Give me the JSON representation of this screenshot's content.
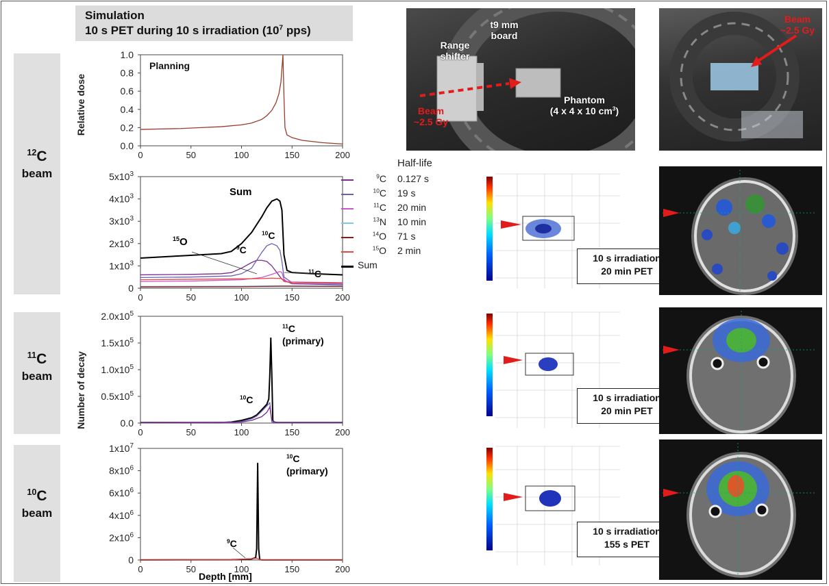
{
  "header": {
    "line1": "Simulation",
    "line2_pre": "10 s PET during 10 s irradiation (10",
    "line2_sup": "7",
    "line2_post": " pps)"
  },
  "rows": [
    {
      "mass": "12",
      "el": "C",
      "word": "beam"
    },
    {
      "mass": "11",
      "el": "C",
      "word": "beam"
    },
    {
      "mass": "10",
      "el": "C",
      "word": "beam"
    }
  ],
  "axis_labels": {
    "relative_dose": "Relative dose",
    "number_of_decay": "Number of decay",
    "depth": "Depth [mm]"
  },
  "legend": {
    "title": "Half-life",
    "items": [
      {
        "mass": "9",
        "el": "C",
        "half_life": "0.127 s",
        "color": "#7b2a8e"
      },
      {
        "mass": "10",
        "el": "C",
        "half_life": "19 s",
        "color": "#6b5fb5"
      },
      {
        "mass": "11",
        "el": "C",
        "half_life": "20 min",
        "color": "#cc55cc"
      },
      {
        "mass": "13",
        "el": "N",
        "half_life": "10 min",
        "color": "#7fc8e8"
      },
      {
        "mass": "14",
        "el": "O",
        "half_life": "71 s",
        "color": "#8b1a1a"
      },
      {
        "mass": "15",
        "el": "O",
        "half_life": "2 min",
        "color": "#ee4444"
      },
      {
        "mass": "",
        "el": "Sum",
        "half_life": "",
        "color": "#000000"
      }
    ]
  },
  "photos": {
    "p1": {
      "range_shifter": "Range shifter",
      "board": "t9 mm board",
      "phantom": "Phantom",
      "phantom_dim_pre": "(4 x 4 x 10 cm",
      "phantom_dim_sup": "3",
      "phantom_dim_post": ")",
      "beam": "Beam",
      "dose": "~2.5 Gy"
    },
    "p2": {
      "beam": "Beam",
      "dose": "~2.5 Gy"
    }
  },
  "pet_boxes": [
    {
      "line1": "10 s irradiation",
      "line2": "20 min PET"
    },
    {
      "line1": "10 s irradiation",
      "line2": "20 min PET"
    },
    {
      "line1": "10 s irradiation",
      "line2": "155 s PET"
    }
  ],
  "chart_data": [
    {
      "type": "line",
      "panel": "planning",
      "title": "Planning",
      "ylabel": "Relative dose",
      "xlim": [
        0,
        200
      ],
      "ylim": [
        0,
        1.0
      ],
      "xticks": [
        "0",
        "50",
        "100",
        "150",
        "200"
      ],
      "yticks": [
        "0.0",
        "0.2",
        "0.4",
        "0.6",
        "0.8",
        "1.0"
      ],
      "series": [
        {
          "color": "#9b3a2a",
          "x": [
            0,
            20,
            40,
            60,
            80,
            100,
            110,
            120,
            125,
            130,
            134,
            137,
            139,
            140,
            141,
            142,
            143,
            145,
            150,
            160,
            180,
            200
          ],
          "y": [
            0.18,
            0.185,
            0.19,
            0.2,
            0.21,
            0.23,
            0.25,
            0.29,
            0.33,
            0.39,
            0.47,
            0.57,
            0.7,
            0.85,
            1.0,
            0.55,
            0.2,
            0.12,
            0.09,
            0.06,
            0.035,
            0.02
          ]
        }
      ]
    },
    {
      "type": "line",
      "panel": "12C beam",
      "xlim": [
        0,
        200
      ],
      "ylim": [
        0,
        5000
      ],
      "xticks": [
        "0",
        "50",
        "100",
        "150",
        "200"
      ],
      "yticks": [
        {
          "base": "0",
          "exp": ""
        },
        {
          "base": "1x10",
          "exp": "3"
        },
        {
          "base": "2x10",
          "exp": "3"
        },
        {
          "base": "3x10",
          "exp": "3"
        },
        {
          "base": "4x10",
          "exp": "3"
        },
        {
          "base": "5x10",
          "exp": "3"
        }
      ],
      "annotations": [
        {
          "mass": "",
          "el": "Sum"
        },
        {
          "mass": "15",
          "el": "O"
        },
        {
          "mass": "9",
          "el": "C"
        },
        {
          "mass": "10",
          "el": "C"
        },
        {
          "mass": "11",
          "el": "C"
        }
      ],
      "series": [
        {
          "name": "Sum",
          "color": "#000000",
          "x": [
            0,
            20,
            40,
            60,
            80,
            90,
            100,
            110,
            120,
            125,
            130,
            135,
            138,
            140,
            142,
            145,
            150,
            170,
            200
          ],
          "y": [
            1350,
            1400,
            1450,
            1500,
            1550,
            1650,
            2000,
            2500,
            3200,
            3600,
            3900,
            4000,
            3900,
            3500,
            1500,
            800,
            700,
            650,
            600
          ]
        },
        {
          "name": "9C",
          "color": "#7b2a8e",
          "x": [
            0,
            50,
            80,
            90,
            100,
            110,
            115,
            120,
            125,
            130,
            135,
            140,
            150,
            200
          ],
          "y": [
            600,
            620,
            650,
            700,
            900,
            1150,
            1250,
            1250,
            1200,
            1000,
            700,
            400,
            200,
            150
          ]
        },
        {
          "name": "10C",
          "color": "#6b5fb5",
          "x": [
            0,
            50,
            90,
            100,
            110,
            120,
            125,
            130,
            135,
            138,
            140,
            142,
            150,
            200
          ],
          "y": [
            480,
            500,
            550,
            650,
            900,
            1600,
            1900,
            2000,
            1900,
            1700,
            1200,
            500,
            250,
            200
          ]
        },
        {
          "name": "11C",
          "color": "#cc55cc",
          "x": [
            0,
            50,
            100,
            120,
            130,
            135,
            138,
            140,
            142,
            145,
            150,
            200
          ],
          "y": [
            300,
            320,
            380,
            480,
            620,
            700,
            750,
            700,
            400,
            300,
            280,
            250
          ]
        },
        {
          "name": "13N",
          "color": "#7fc8e8",
          "x": [
            0,
            100,
            140,
            200
          ],
          "y": [
            80,
            90,
            110,
            100
          ]
        },
        {
          "name": "14O",
          "color": "#8b1a1a",
          "x": [
            0,
            100,
            140,
            200
          ],
          "y": [
            60,
            70,
            90,
            80
          ]
        },
        {
          "name": "15O",
          "color": "#ee4444",
          "x": [
            0,
            50,
            100,
            120,
            130,
            140,
            142,
            150,
            200
          ],
          "y": [
            380,
            400,
            420,
            430,
            450,
            430,
            300,
            250,
            250
          ]
        }
      ]
    },
    {
      "type": "line",
      "panel": "11C beam",
      "ylabel": "Number of decay",
      "xlim": [
        0,
        200
      ],
      "ylim": [
        0,
        200000
      ],
      "xticks": [
        "0",
        "50",
        "100",
        "150",
        "200"
      ],
      "yticks": [
        {
          "base": "0.0",
          "exp": ""
        },
        {
          "base": "0.5x10",
          "exp": "5"
        },
        {
          "base": "1.0x10",
          "exp": "5"
        },
        {
          "base": "1.5x10",
          "exp": "5"
        },
        {
          "base": "2.0x10",
          "exp": "5"
        }
      ],
      "annotations": [
        {
          "mass": "11",
          "el": "C",
          "note": "(primary)"
        },
        {
          "mass": "10",
          "el": "C"
        }
      ],
      "series": [
        {
          "name": "Sum",
          "color": "#000000",
          "x": [
            0,
            80,
            90,
            100,
            110,
            115,
            120,
            125,
            127,
            128,
            129,
            130,
            131,
            132,
            135,
            200
          ],
          "y": [
            800,
            1000,
            2000,
            5000,
            10000,
            15000,
            25000,
            35000,
            45000,
            90000,
            160000,
            90000,
            5000,
            2000,
            1000,
            800
          ]
        },
        {
          "name": "10C",
          "color": "#6b5fb5",
          "x": [
            0,
            90,
            100,
            110,
            115,
            120,
            125,
            128,
            129,
            130,
            135,
            200
          ],
          "y": [
            300,
            800,
            3000,
            8000,
            13000,
            22000,
            32000,
            38000,
            20000,
            2000,
            500,
            300
          ]
        },
        {
          "name": "9C",
          "color": "#7b2a8e",
          "x": [
            0,
            100,
            110,
            120,
            125,
            128,
            130,
            135,
            200
          ],
          "y": [
            300,
            2000,
            5000,
            12000,
            20000,
            30000,
            5000,
            500,
            300
          ]
        }
      ]
    },
    {
      "type": "line",
      "panel": "10C beam",
      "xlabel": "Depth [mm]",
      "xlim": [
        0,
        200
      ],
      "ylim": [
        0,
        10000000
      ],
      "xticks": [
        "0",
        "50",
        "100",
        "150",
        "200"
      ],
      "yticks": [
        {
          "base": "0",
          "exp": ""
        },
        {
          "base": "2x10",
          "exp": "6"
        },
        {
          "base": "4x10",
          "exp": "6"
        },
        {
          "base": "6x10",
          "exp": "6"
        },
        {
          "base": "8x10",
          "exp": "6"
        },
        {
          "base": "1x10",
          "exp": "7"
        }
      ],
      "annotations": [
        {
          "mass": "10",
          "el": "C",
          "note": "(primary)"
        },
        {
          "mass": "9",
          "el": "C"
        }
      ],
      "series": [
        {
          "name": "Sum",
          "color": "#000000",
          "x": [
            0,
            90,
            100,
            110,
            114,
            115,
            116,
            117,
            118,
            119,
            120,
            200
          ],
          "y": [
            10000,
            20000,
            50000,
            100000,
            200000,
            1000000,
            8700000,
            1000000,
            50000,
            20000,
            10000,
            10000
          ]
        },
        {
          "name": "15O",
          "color": "#ee4444",
          "x": [
            0,
            90,
            100,
            110,
            115,
            117,
            119,
            200
          ],
          "y": [
            5000,
            20000,
            70000,
            120000,
            150000,
            100000,
            10000,
            5000
          ]
        }
      ]
    }
  ]
}
